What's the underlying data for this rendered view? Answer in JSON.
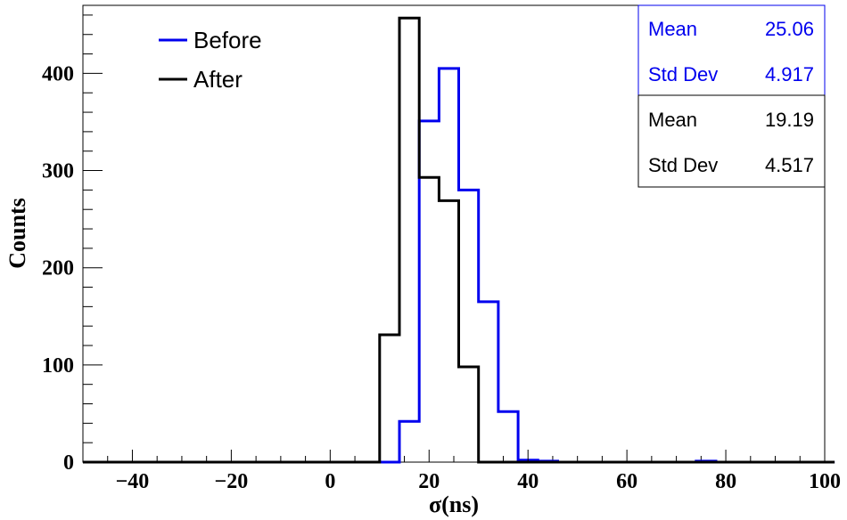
{
  "chart_data": {
    "type": "histogram",
    "xlabel": "σ(ns)",
    "ylabel": "Counts",
    "xlim": [
      -50,
      100
    ],
    "ylim": [
      0,
      470
    ],
    "x_ticks": [
      -40,
      -20,
      0,
      20,
      40,
      60,
      80,
      100
    ],
    "x_tick_labels": [
      "−40",
      "−20",
      "0",
      "20",
      "40",
      "60",
      "80",
      "100"
    ],
    "y_ticks": [
      0,
      100,
      200,
      300,
      400
    ],
    "y_tick_labels": [
      "0",
      "100",
      "200",
      "300",
      "400"
    ],
    "bin_width": 4,
    "grid": false,
    "legend_position": "top-left",
    "series": [
      {
        "name": "Before",
        "color": "#0000ee",
        "bins": [
          [
            14,
            42
          ],
          [
            18,
            351
          ],
          [
            22,
            405
          ],
          [
            26,
            280
          ],
          [
            30,
            165
          ],
          [
            34,
            52
          ],
          [
            38,
            2
          ],
          [
            42,
            1
          ],
          [
            74,
            1
          ]
        ]
      },
      {
        "name": "After",
        "color": "#000000",
        "bins": [
          [
            10,
            131
          ],
          [
            14,
            457
          ],
          [
            18,
            293
          ],
          [
            22,
            269
          ],
          [
            26,
            98
          ]
        ]
      }
    ],
    "stats": [
      {
        "color": "#0000ee",
        "rows": [
          {
            "label": "Mean",
            "value": "25.06"
          },
          {
            "label": "Std Dev",
            "value": "4.917"
          }
        ]
      },
      {
        "color": "#000000",
        "rows": [
          {
            "label": "Mean",
            "value": "19.19"
          },
          {
            "label": "Std Dev",
            "value": "4.517"
          }
        ]
      }
    ]
  }
}
